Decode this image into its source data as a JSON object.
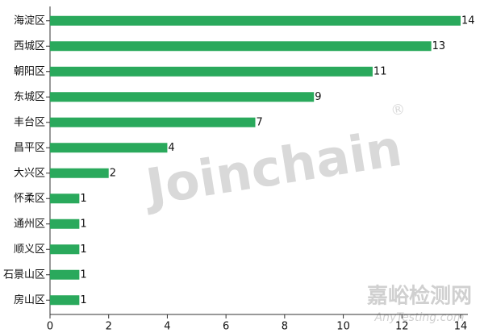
{
  "chart_data": {
    "type": "barh",
    "categories": [
      "海淀区",
      "西城区",
      "朝阳区",
      "东城区",
      "丰台区",
      "昌平区",
      "大兴区",
      "怀柔区",
      "通州区",
      "顺义区",
      "石景山区",
      "房山区"
    ],
    "values": [
      14,
      13,
      11,
      9,
      7,
      4,
      2,
      1,
      1,
      1,
      1,
      1
    ],
    "color": "#2aa95c",
    "xlim": [
      0,
      14
    ],
    "xticks": [
      0,
      2,
      4,
      6,
      8,
      10,
      12,
      14
    ],
    "watermarks": [
      "Joinchain",
      "®",
      "嘉峪检测网",
      "AnyTesting.com"
    ]
  }
}
